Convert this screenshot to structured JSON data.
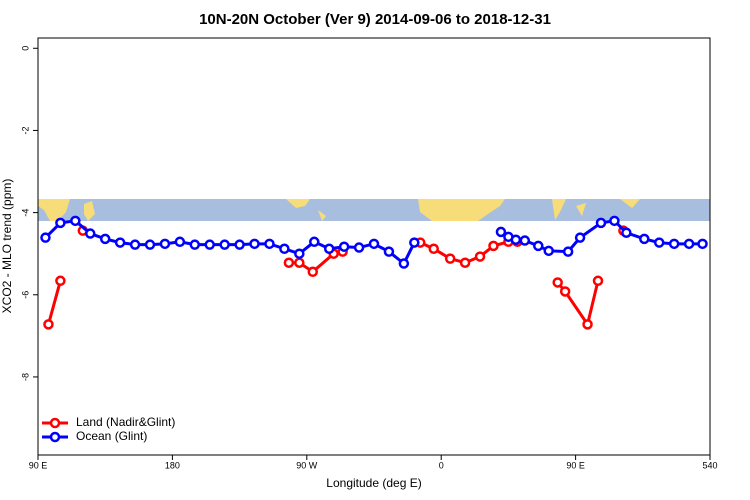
{
  "chart_data": {
    "type": "line",
    "title": "10N-20N October (Ver 9)   2014-09-06 to 2018-12-31",
    "x_label": "Longitude (deg E)",
    "y_label": "XCO2 - MLO trend (ppm)",
    "xlim": [
      90,
      540
    ],
    "xticks": [
      {
        "value": 90,
        "label": "90 E"
      },
      180,
      {
        "value": 270,
        "label": "90 W"
      },
      {
        "value": 360,
        "label": "0"
      },
      {
        "value": 450,
        "label": "90 E"
      },
      540
    ],
    "ylim": [
      -9.9,
      0.25
    ],
    "yticks": [
      0,
      -2,
      -4,
      -6,
      -8
    ],
    "legend": "bottom-left",
    "series": [
      {
        "name": "Land (Nadir&Glint)",
        "color": "#ff0000",
        "x": [
          97,
          105,
          null,
          120,
          null,
          258,
          265,
          274,
          288,
          294,
          null,
          346,
          355,
          366,
          376,
          386,
          395,
          405,
          411,
          null,
          438,
          443,
          458,
          465,
          null,
          482
        ],
        "values": [
          -6.72,
          -5.66,
          null,
          -4.44,
          null,
          -5.22,
          -5.22,
          -5.44,
          -5.0,
          -4.95,
          null,
          -4.73,
          -4.88,
          -5.12,
          -5.22,
          -5.07,
          -4.81,
          -4.71,
          -4.71,
          null,
          -5.7,
          -5.92,
          -6.72,
          -5.66,
          null,
          -4.44
        ]
      },
      {
        "name": "Ocean (Glint)",
        "color": "#0000ff",
        "x": [
          95,
          105,
          115,
          125,
          135,
          145,
          155,
          165,
          175,
          185,
          195,
          205,
          215,
          225,
          235,
          245,
          255,
          265,
          275,
          285,
          295,
          305,
          315,
          325,
          335,
          342,
          null,
          400,
          405,
          410,
          416,
          425,
          432,
          445,
          453,
          467,
          476,
          484,
          496,
          506,
          516,
          526,
          535
        ],
        "values": [
          -4.61,
          -4.25,
          -4.2,
          -4.51,
          -4.64,
          -4.73,
          -4.78,
          -4.78,
          -4.76,
          -4.71,
          -4.78,
          -4.78,
          -4.78,
          -4.78,
          -4.76,
          -4.76,
          -4.88,
          -5.0,
          -4.71,
          -4.88,
          -4.83,
          -4.85,
          -4.76,
          -4.95,
          -5.24,
          -4.73,
          null,
          -4.47,
          -4.59,
          -4.66,
          -4.68,
          -4.81,
          -4.93,
          -4.95,
          -4.61,
          -4.25,
          -4.2,
          -4.49,
          -4.64,
          -4.73,
          -4.76,
          -4.76,
          -4.76
        ]
      }
    ]
  }
}
